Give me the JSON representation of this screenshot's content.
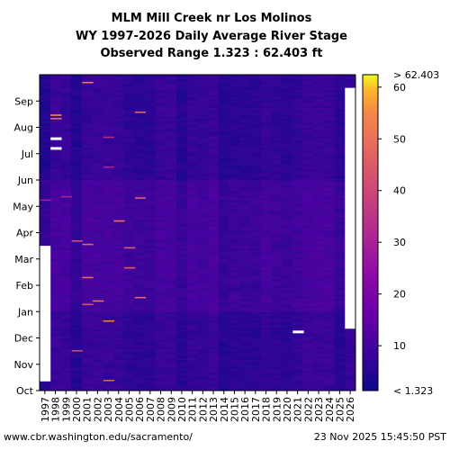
{
  "chart_data": {
    "type": "heatmap",
    "title_lines": [
      "MLM Mill Creek nr Los Molinos",
      "WY 1997-2026 Daily Average River Stage",
      "Observed Range 1.323 : 62.403 ft"
    ],
    "x_categories": [
      "1997",
      "1998",
      "1999",
      "2000",
      "2001",
      "2002",
      "2003",
      "2004",
      "2005",
      "2006",
      "2007",
      "2008",
      "2009",
      "2010",
      "2011",
      "2012",
      "2013",
      "2014",
      "2015",
      "2016",
      "2017",
      "2018",
      "2019",
      "2020",
      "2021",
      "2022",
      "2023",
      "2024",
      "2025",
      "2026"
    ],
    "y_months": [
      "Oct",
      "Nov",
      "Dec",
      "Jan",
      "Feb",
      "Mar",
      "Apr",
      "May",
      "Jun",
      "Jul",
      "Aug",
      "Sep"
    ],
    "colorbar": {
      "min": 1.323,
      "max": 62.403,
      "ticks": [
        10,
        20,
        30,
        40,
        50,
        60
      ],
      "top_label": "> 62.403",
      "bottom_label": "< 1.323",
      "colormap": "plasma"
    },
    "missing_data": [
      {
        "year": "1997",
        "from_month": "Oct",
        "to_month": "Mar"
      },
      {
        "year": "2026",
        "from_month": "Dec",
        "to_month": "Sep"
      }
    ],
    "high_events": [
      {
        "year": "1998",
        "month": "Jul",
        "value": 62.4
      },
      {
        "year": "1998",
        "month": "Jul",
        "value": 62.4
      },
      {
        "year": "1998",
        "month": "Aug",
        "value": 55
      },
      {
        "year": "1998",
        "month": "Aug",
        "value": 50
      },
      {
        "year": "2001",
        "month": "Sep",
        "value": 52
      },
      {
        "year": "2006",
        "month": "Aug",
        "value": 48
      },
      {
        "year": "2004",
        "month": "Apr",
        "value": 50
      },
      {
        "year": "2006",
        "month": "May",
        "value": 45
      },
      {
        "year": "2000",
        "month": "Mar",
        "value": 42
      },
      {
        "year": "2001",
        "month": "Mar",
        "value": 48
      },
      {
        "year": "2005",
        "month": "Mar",
        "value": 46
      },
      {
        "year": "2001",
        "month": "Feb",
        "value": 50
      },
      {
        "year": "2005",
        "month": "Feb",
        "value": 44
      },
      {
        "year": "2006",
        "month": "Jan",
        "value": 48
      },
      {
        "year": "2002",
        "month": "Jan",
        "value": 50
      },
      {
        "year": "2001",
        "month": "Jan",
        "value": 44
      },
      {
        "year": "2003",
        "month": "Dec",
        "value": 52
      },
      {
        "year": "2000",
        "month": "Nov",
        "value": 40
      },
      {
        "year": "2003",
        "month": "Oct",
        "value": 45
      },
      {
        "year": "2021",
        "month": "Dec",
        "value": 62.4
      },
      {
        "year": "2003",
        "month": "Jul",
        "value": 32
      },
      {
        "year": "2003",
        "month": "Jun",
        "value": 30
      },
      {
        "year": "1999",
        "month": "May",
        "value": 30
      },
      {
        "year": "1997",
        "month": "May",
        "value": 28
      }
    ]
  },
  "footer": {
    "source": "www.cbr.washington.edu/sacramento/",
    "timestamp": "23 Nov 2025 15:45:50 PST"
  }
}
